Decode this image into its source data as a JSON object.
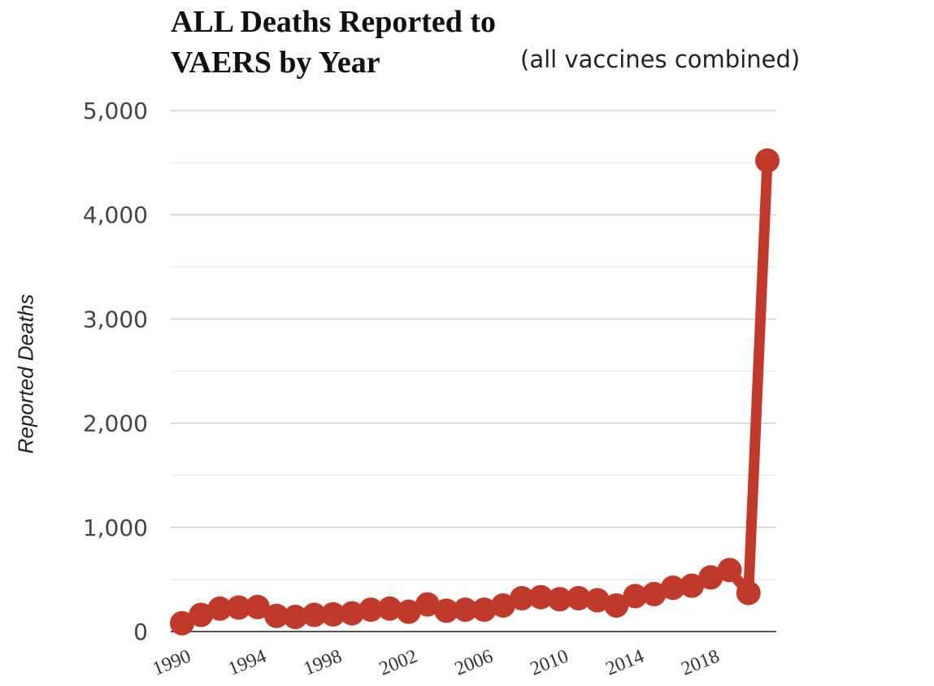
{
  "chart_data": {
    "type": "line",
    "title": "ALL Deaths Reported to VAERS by Year",
    "title_line1": "ALL Deaths Reported to",
    "title_line2": "VAERS by Year",
    "subtitle": "(all vaccines combined)",
    "xlabel": "",
    "ylabel": "Reported Deaths",
    "ylim": [
      0,
      5000
    ],
    "yticks": [
      "0",
      "1,000",
      "2,000",
      "3,000",
      "4,000",
      "5,000"
    ],
    "ytick_values": [
      0,
      1000,
      2000,
      3000,
      4000,
      5000
    ],
    "xticks": [
      "1990",
      "1994",
      "1998",
      "2002",
      "2006",
      "2010",
      "2014",
      "2018"
    ],
    "xtick_values": [
      1990,
      1994,
      1998,
      2002,
      2006,
      2010,
      2014,
      2018
    ],
    "grid": true,
    "series_color": "#c0392b",
    "x": [
      1990,
      1991,
      1992,
      1993,
      1994,
      1995,
      1996,
      1997,
      1998,
      1999,
      2000,
      2001,
      2002,
      2003,
      2004,
      2005,
      2006,
      2007,
      2008,
      2009,
      2010,
      2011,
      2012,
      2013,
      2014,
      2015,
      2016,
      2017,
      2018,
      2019,
      2020,
      2021
    ],
    "values": [
      80,
      160,
      220,
      230,
      235,
      150,
      140,
      160,
      165,
      175,
      210,
      220,
      190,
      260,
      200,
      210,
      210,
      250,
      320,
      330,
      310,
      320,
      300,
      250,
      340,
      360,
      420,
      440,
      520,
      590,
      370,
      4520
    ]
  }
}
